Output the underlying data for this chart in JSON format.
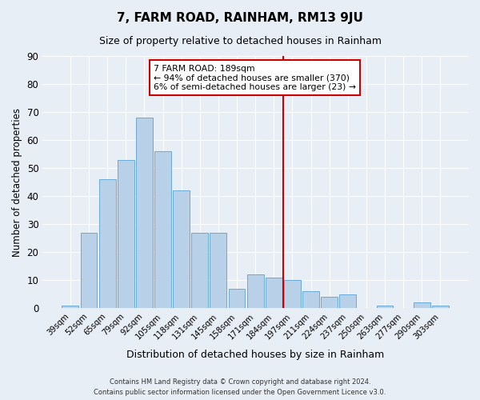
{
  "title": "7, FARM ROAD, RAINHAM, RM13 9JU",
  "subtitle": "Size of property relative to detached houses in Rainham",
  "xlabel": "Distribution of detached houses by size in Rainham",
  "ylabel": "Number of detached properties",
  "bar_labels": [
    "39sqm",
    "52sqm",
    "65sqm",
    "79sqm",
    "92sqm",
    "105sqm",
    "118sqm",
    "131sqm",
    "145sqm",
    "158sqm",
    "171sqm",
    "184sqm",
    "197sqm",
    "211sqm",
    "224sqm",
    "237sqm",
    "250sqm",
    "263sqm",
    "277sqm",
    "290sqm",
    "303sqm"
  ],
  "bar_values": [
    1,
    27,
    46,
    53,
    68,
    56,
    42,
    27,
    27,
    7,
    12,
    11,
    10,
    6,
    4,
    5,
    0,
    1,
    0,
    2,
    1
  ],
  "bar_color": "#b8d0e8",
  "bar_edge_color": "#6aaad4",
  "ylim": [
    0,
    90
  ],
  "yticks": [
    0,
    10,
    20,
    30,
    40,
    50,
    60,
    70,
    80,
    90
  ],
  "vline_color": "#cc0000",
  "annotation_title": "7 FARM ROAD: 189sqm",
  "annotation_line1": "← 94% of detached houses are smaller (370)",
  "annotation_line2": "6% of semi-detached houses are larger (23) →",
  "annotation_box_edge_color": "#cc0000",
  "background_color": "#e8eef5",
  "grid_color": "#ffffff",
  "footer_line1": "Contains HM Land Registry data © Crown copyright and database right 2024.",
  "footer_line2": "Contains public sector information licensed under the Open Government Licence v3.0."
}
